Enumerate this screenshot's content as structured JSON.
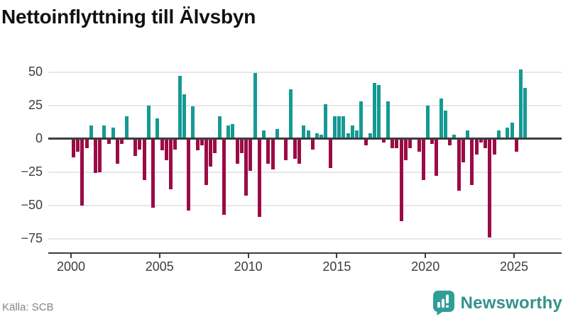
{
  "header": {
    "title": "Nettoinflyttning till Älvsbyn"
  },
  "footer": {
    "source": "Källa: SCB",
    "logo_text": "Newsworthy",
    "logo_text_color": "#35918c",
    "logo_icon_color": "#2f9e97",
    "logo_icon_name": "bar-chart-speech-bubble"
  },
  "colors": {
    "positive_bar": "#149a93",
    "negative_bar": "#9b0b45",
    "gridline": "#e7e7e7",
    "axis_line": "#3d3d3d",
    "axis_label": "#3d3d3d",
    "title": "#111111",
    "source_text": "#848484",
    "background": "#ffffff"
  },
  "chart_data": {
    "type": "bar",
    "title": "Nettoinflyttning till Älvsbyn",
    "x_unit": "quarter",
    "start_year": 2000,
    "start_quarter": 1,
    "end_label": "2025 Q3",
    "values": [
      -14,
      -10,
      -50,
      -7,
      10,
      -26,
      -25,
      10,
      -4,
      8,
      -19,
      -4,
      17,
      0,
      -13,
      -8,
      -31,
      25,
      -52,
      15,
      -9,
      -16,
      -38,
      -8,
      47,
      33,
      -54,
      24,
      -9,
      -5,
      -35,
      -21,
      -11,
      17,
      -57,
      10,
      11,
      -19,
      -11,
      -43,
      -24,
      49,
      -59,
      6,
      -19,
      -23,
      7,
      1,
      -16,
      37,
      -15,
      -19,
      10,
      6,
      -8,
      4,
      3,
      26,
      -22,
      17,
      17,
      17,
      4,
      10,
      6,
      28,
      -5,
      4,
      42,
      40,
      -3,
      28,
      -7,
      -7,
      -62,
      -16,
      -7,
      0,
      -10,
      -31,
      25,
      -4,
      -28,
      30,
      21,
      -5,
      3,
      -39,
      -18,
      6,
      -35,
      -12,
      -3,
      -7,
      -74,
      -12,
      6,
      -1,
      8,
      12,
      -10,
      52,
      38
    ],
    "y_ticks": [
      50,
      25,
      0,
      -25,
      -50,
      -75
    ],
    "y_tick_labels": [
      "50",
      "25",
      "0",
      "−25",
      "−50",
      "−75"
    ],
    "x_tick_years": [
      2000,
      2005,
      2010,
      2015,
      2020,
      2025
    ],
    "x_tick_labels": [
      "2000",
      "2005",
      "2010",
      "2015",
      "2020",
      "2025"
    ],
    "ylim": [
      -80,
      55
    ],
    "grid": true,
    "legend": "none",
    "positive_color": "#149a93",
    "negative_color": "#9b0b45"
  }
}
